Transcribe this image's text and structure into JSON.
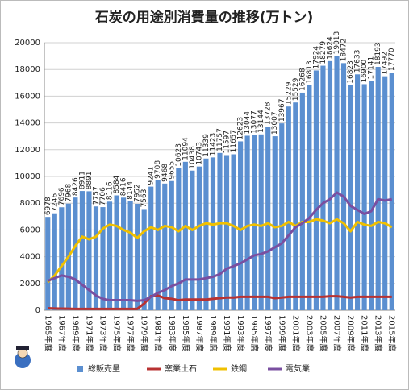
{
  "chart_data": {
    "type": "bar",
    "title": "石炭の用途別消費量の推移(万トン)",
    "categories": [
      "1965年度",
      null,
      "1967年度",
      null,
      "1969年度",
      null,
      "1971年度",
      null,
      "1973年度",
      null,
      "1975年度",
      null,
      "1977年度",
      null,
      "1979年度",
      null,
      "1981年度",
      null,
      "1983年度",
      null,
      "1985年度",
      null,
      "1987年度",
      null,
      "1989年度",
      null,
      "1991年度",
      null,
      "1993年度",
      null,
      "1995年度",
      null,
      "1997年度",
      null,
      "1999年度",
      null,
      "2001年度",
      null,
      "2003年度",
      null,
      "2005年度",
      null,
      "2007年度",
      null,
      "2009年度",
      null,
      "2011年度",
      null,
      "2013年度",
      null,
      "2015年度"
    ],
    "series": [
      {
        "name": "総販売量",
        "type": "bar",
        "color": "#5b8fd0",
        "values": [
          6978,
          7246,
          7696,
          7968,
          8426,
          8911,
          8891,
          7757,
          7706,
          8116,
          8584,
          8416,
          8144,
          7952,
          7563,
          9241,
          9708,
          9468,
          9655,
          10623,
          11094,
          10438,
          10743,
          11339,
          11423,
          11757,
          11597,
          11657,
          12623,
          13044,
          13077,
          13144,
          13728,
          13007,
          13967,
          15229,
          15529,
          16268,
          16813,
          17924,
          18279,
          18624,
          19013,
          18472,
          16823,
          17633,
          16900,
          17141,
          18193,
          17492,
          17770
        ]
      },
      {
        "name": "窯業土石",
        "type": "line",
        "color": "#b83232",
        "values": [
          150,
          130,
          120,
          110,
          100,
          100,
          100,
          100,
          100,
          100,
          100,
          100,
          100,
          100,
          500,
          1050,
          1100,
          900,
          850,
          750,
          800,
          800,
          800,
          800,
          850,
          900,
          950,
          950,
          1000,
          1000,
          1000,
          1000,
          1000,
          900,
          950,
          1000,
          1000,
          1000,
          1000,
          1000,
          1000,
          1050,
          1050,
          1000,
          950,
          1000,
          1000,
          1000,
          1000,
          1000,
          1000
        ]
      },
      {
        "name": "鉄鋼",
        "type": "line",
        "color": "#f0c000",
        "values": [
          2100,
          2600,
          3300,
          4000,
          4800,
          5500,
          5300,
          5500,
          6100,
          6400,
          6300,
          6000,
          5800,
          5400,
          5900,
          6200,
          6000,
          6300,
          6200,
          5900,
          6300,
          6000,
          6300,
          6500,
          6400,
          6500,
          6500,
          6300,
          6000,
          6300,
          6400,
          6300,
          6500,
          6200,
          6300,
          6600,
          6300,
          6600,
          6600,
          6800,
          6700,
          6500,
          6800,
          6500,
          5900,
          6600,
          6400,
          6300,
          6600,
          6500,
          6200
        ]
      },
      {
        "name": "電気業",
        "type": "line",
        "color": "#7a4fa0",
        "values": [
          2200,
          2400,
          2600,
          2500,
          2300,
          1900,
          1500,
          1100,
          850,
          750,
          750,
          750,
          750,
          700,
          750,
          1000,
          1300,
          1500,
          1800,
          2000,
          2300,
          2300,
          2300,
          2400,
          2500,
          2700,
          3100,
          3300,
          3500,
          3800,
          4100,
          4200,
          4400,
          4700,
          5000,
          5600,
          6200,
          6500,
          6900,
          7500,
          8000,
          8300,
          8800,
          8500,
          7800,
          7500,
          7200,
          7400,
          8300,
          8200,
          8300
        ]
      }
    ],
    "ylim": [
      0,
      20000
    ],
    "yticks": [
      0,
      2000,
      4000,
      6000,
      8000,
      10000,
      12000,
      14000,
      16000,
      18000,
      20000
    ],
    "grid": true,
    "legend": "bottom"
  }
}
